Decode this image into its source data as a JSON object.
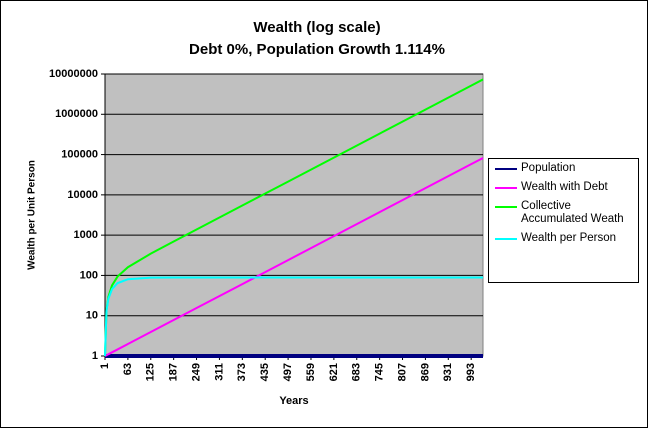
{
  "chart_data": {
    "type": "line",
    "title": "Wealth (log scale)",
    "subtitle": "Debt 0%, Population Growth 1.114%",
    "x_label": "Years",
    "y_label": "Wealth per Unit Person",
    "x": [
      1,
      5,
      10,
      20,
      35,
      63,
      125,
      187,
      249,
      373,
      497,
      621,
      745,
      869,
      993,
      1025
    ],
    "series": [
      {
        "name": "Population",
        "color": "#000080",
        "values": [
          1,
          1,
          1,
          1,
          1,
          1,
          1,
          1,
          1,
          1,
          1,
          1,
          1,
          1,
          1,
          1
        ]
      },
      {
        "name": "Wealth with Debt",
        "color": "#ff00ff",
        "values": [
          1,
          1.045,
          1.105,
          1.234,
          1.456,
          1.984,
          3.94,
          7.81,
          15.5,
          61,
          240,
          946,
          3726,
          14670,
          57770,
          82300
        ]
      },
      {
        "name": "Collective Accumulated Weath",
        "color": "#00ff00",
        "values": [
          1,
          13.8,
          29,
          56.5,
          93.8,
          160,
          347,
          695,
          1380,
          5430,
          21360,
          84200,
          331600,
          1305600,
          5141500,
          7325000
        ]
      },
      {
        "name": "Wealth per Person",
        "color": "#00ffff",
        "values": [
          1,
          13.2,
          26.2,
          45.8,
          64.4,
          80.4,
          88.1,
          89,
          89,
          89,
          89,
          89,
          89,
          89,
          89,
          89
        ]
      }
    ],
    "xlim": [
      1,
      1025
    ],
    "xticks": [
      1,
      63,
      125,
      187,
      249,
      311,
      373,
      435,
      497,
      559,
      621,
      683,
      745,
      807,
      869,
      931,
      993
    ],
    "ylim": [
      1,
      10000000
    ],
    "yticks": [
      1,
      10,
      100,
      1000,
      10000,
      100000,
      1000000,
      10000000
    ],
    "yscale": "log",
    "grid": true,
    "plot_background": "#c0c0c0",
    "legend": "right"
  }
}
